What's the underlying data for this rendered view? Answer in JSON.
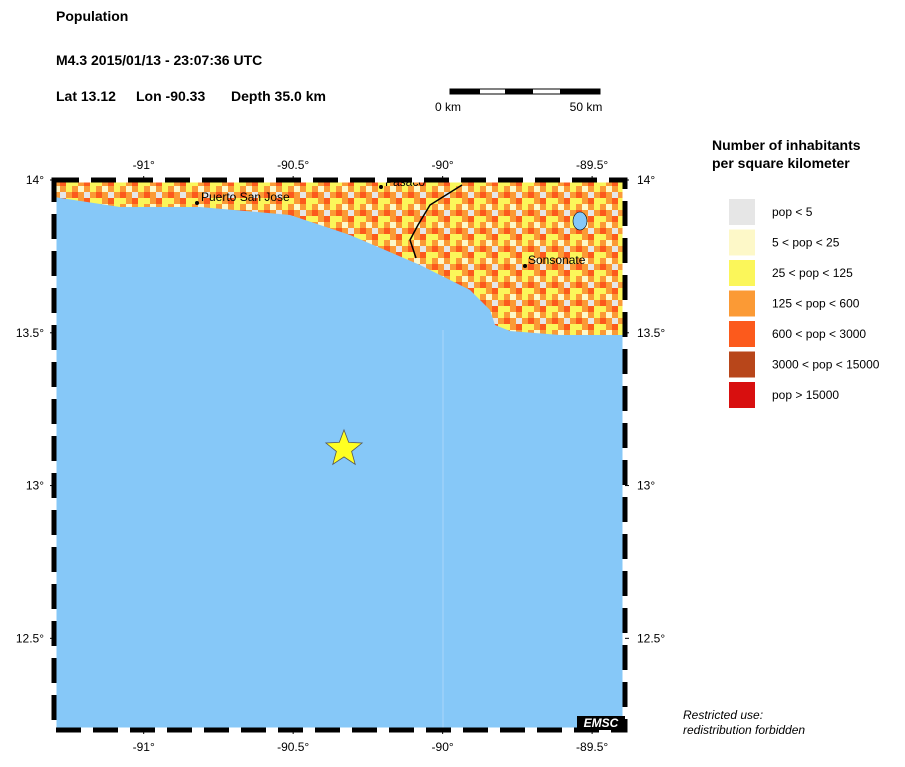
{
  "header": {
    "title": "Population",
    "event": "M4.3  2015/01/13 - 23:07:36 UTC",
    "lat": {
      "label": "Lat",
      "value": 13.12
    },
    "lon": {
      "label": "Lon",
      "value": -90.33
    },
    "depth": "Depth  35.0 km"
  },
  "scale_bar": {
    "start": "0 km",
    "end": "50 km"
  },
  "map": {
    "xlim": [
      -91.3,
      -89.39
    ],
    "ylim": [
      12.2,
      14.0
    ],
    "xticks": [
      {
        "value": -91,
        "label": "-91°"
      },
      {
        "value": -90.5,
        "label": "-90.5°"
      },
      {
        "value": -90,
        "label": "-90°"
      },
      {
        "value": -89.5,
        "label": "-89.5°"
      }
    ],
    "yticks": [
      {
        "value": 14,
        "label": "14°"
      },
      {
        "value": 13.5,
        "label": "13.5°"
      },
      {
        "value": 13,
        "label": "13°"
      },
      {
        "value": 12.5,
        "label": "12.5°"
      }
    ],
    "places": [
      "Puerto San Jose",
      "Pasaco",
      "Sonsonate"
    ],
    "credit": "EMSC"
  },
  "legend": {
    "title": [
      "Number of inhabitants",
      "per square kilometer"
    ],
    "items": [
      {
        "label": "pop < 5",
        "color": "#e6e6e6"
      },
      {
        "label": "5 < pop < 25",
        "color": "#fdf8c8"
      },
      {
        "label": "25 < pop < 125",
        "color": "#fbf65a"
      },
      {
        "label": "125 < pop < 600",
        "color": "#fb9a35"
      },
      {
        "label": "600 < pop < 3000",
        "color": "#fc5a1c"
      },
      {
        "label": "3000 < pop < 15000",
        "color": "#b8461a"
      },
      {
        "label": "pop > 15000",
        "color": "#d80f0f"
      }
    ]
  },
  "notice": [
    "Restricted use:",
    "redistribution forbidden"
  ]
}
